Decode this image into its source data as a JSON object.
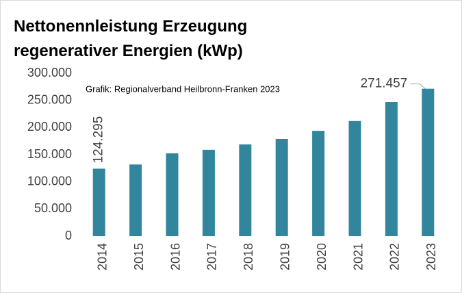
{
  "chart_data": {
    "type": "bar",
    "title": [
      "Nettonennleistung Erzeugung",
      "regenerativer Energien (kWp)"
    ],
    "annotation": "Grafik: Regionalverband Heilbronn-Franken 2023",
    "categories": [
      "2014",
      "2015",
      "2016",
      "2017",
      "2018",
      "2019",
      "2020",
      "2021",
      "2022",
      "2023"
    ],
    "values": [
      124295,
      132000,
      152500,
      159000,
      169000,
      179000,
      194000,
      212000,
      247000,
      271457
    ],
    "value_labels": [
      "124.295",
      null,
      null,
      null,
      null,
      null,
      null,
      null,
      null,
      "271.457"
    ],
    "color": "#31859c",
    "ylim": [
      0,
      300000
    ],
    "yticks": [
      0,
      {
        "value": 50000,
        "label": "50.000"
      },
      {
        "value": 100000,
        "label": "100.000"
      },
      {
        "value": 150000,
        "label": "150.000"
      },
      {
        "value": 200000,
        "label": "200.000"
      },
      {
        "value": 250000,
        "label": "250.000"
      },
      {
        "value": 300000,
        "label": "300.000"
      }
    ],
    "grid": false
  }
}
